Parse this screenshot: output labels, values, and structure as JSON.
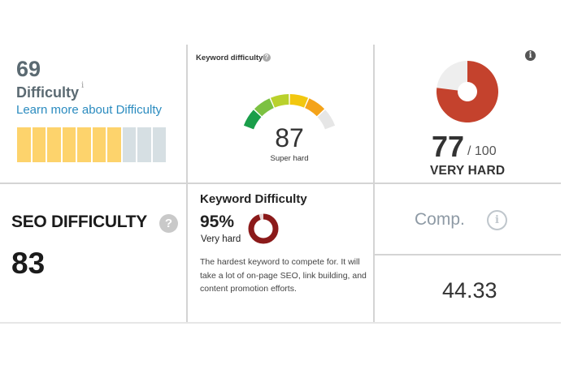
{
  "panel1": {
    "score": "69",
    "label": "Difficulty",
    "info": "i",
    "link": "Learn more about Difficulty",
    "bars": {
      "total": 10,
      "filled": 7,
      "filled_color": "#fdd36c",
      "empty_color": "#d6dfe3"
    }
  },
  "panel2": {
    "title": "Keyword difficulty",
    "help": "?",
    "score": "87",
    "subtitle": "Super hard",
    "gauge_level": 0.87
  },
  "panel3": {
    "info": "i",
    "score": "77",
    "max": "/ 100",
    "label": "VERY HARD",
    "donut_level": 0.77,
    "color": "#c4422d"
  },
  "panel4": {
    "title": "SEO DIFFICULTY",
    "help": "?",
    "score": "83"
  },
  "panel5": {
    "title": "Keyword Difficulty",
    "percent": "95%",
    "level": "Very hard",
    "ring_level": 0.95,
    "ring_color": "#8b1a1a",
    "description": "The hardest keyword to compete for. It will take a lot of on-page SEO, link building, and content promotion efforts."
  },
  "panel6": {
    "label": "Comp.",
    "info": "i",
    "value": "44.33"
  }
}
